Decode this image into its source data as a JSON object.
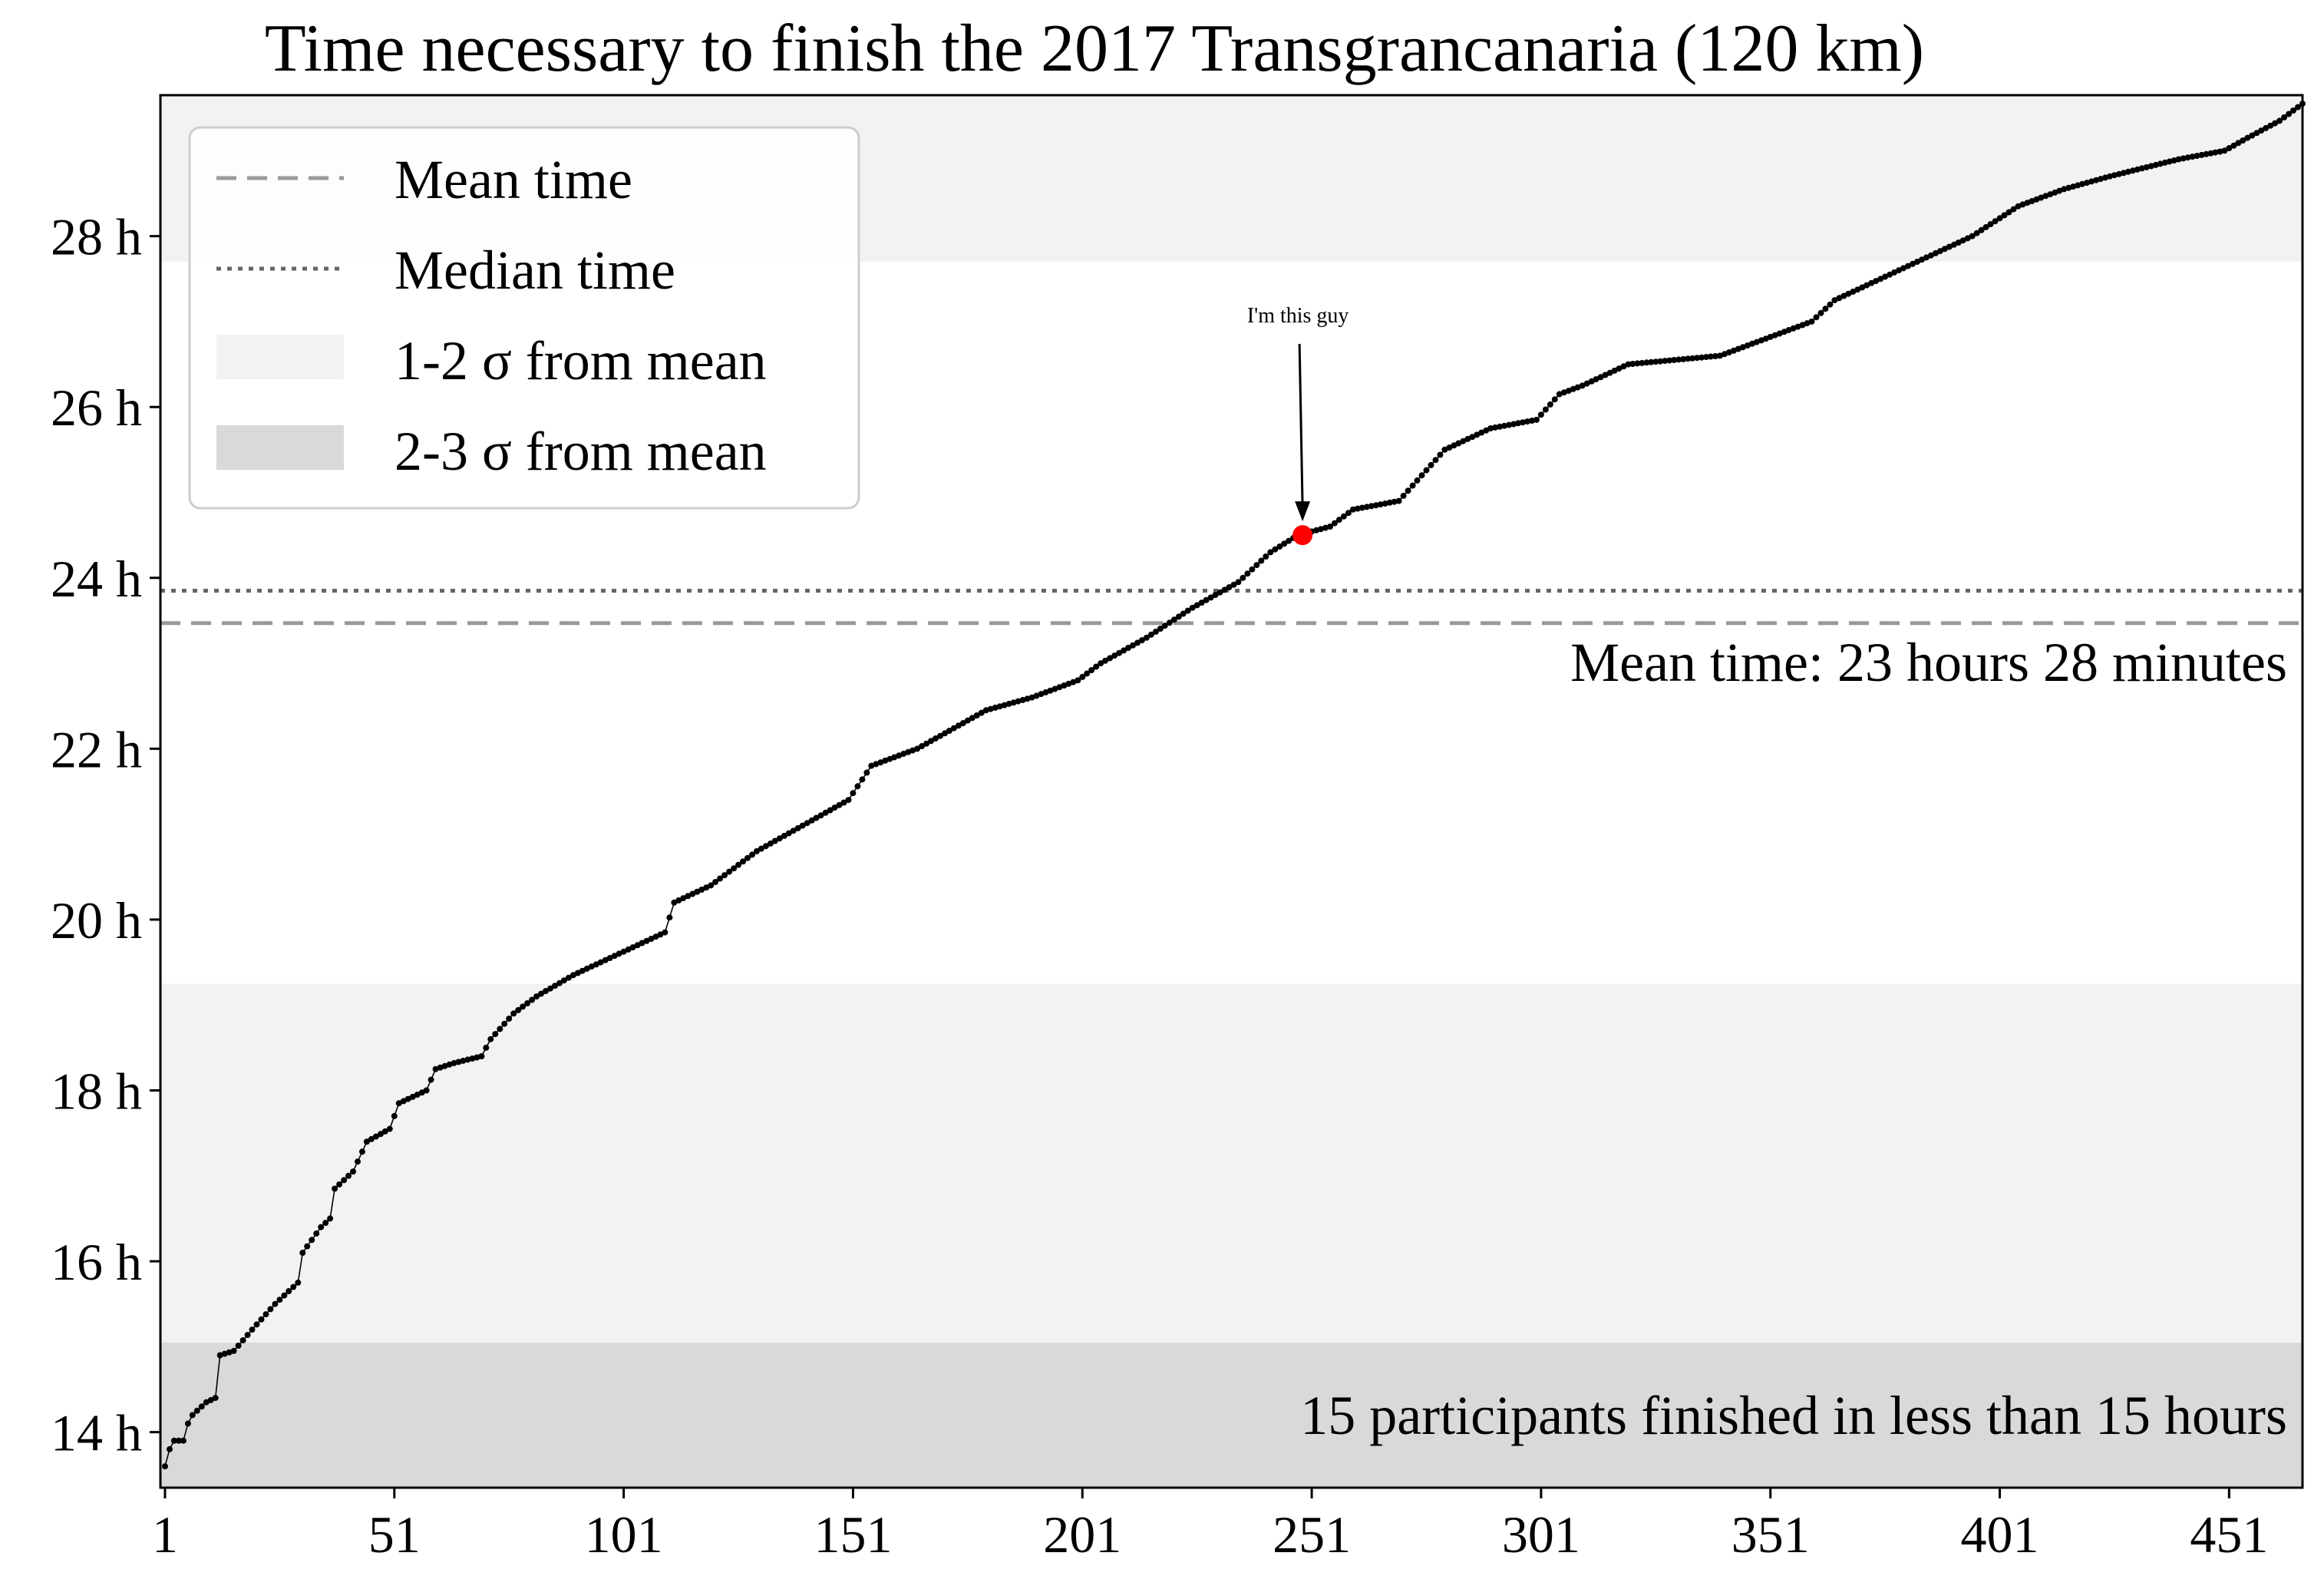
{
  "chart_data": {
    "type": "line",
    "title": "Time necessary to finish the 2017 Transgrancanaria (120 km)",
    "xlabel": "",
    "ylabel": "",
    "xlim": [
      0,
      467
    ],
    "ylim": [
      13.35,
      29.65
    ],
    "x_ticks": [
      1,
      51,
      101,
      151,
      201,
      251,
      301,
      351,
      401,
      451
    ],
    "x_tick_labels": [
      "1",
      "51",
      "101",
      "151",
      "201",
      "251",
      "301",
      "351",
      "401",
      "451"
    ],
    "y_ticks": [
      14,
      16,
      18,
      20,
      22,
      24,
      26,
      28
    ],
    "y_tick_labels": [
      "14 h",
      "16 h",
      "18 h",
      "20 h",
      "22 h",
      "24 h",
      "26 h",
      "28 h"
    ],
    "grid": false,
    "legend_position": "top-left",
    "legend": [
      {
        "label": "Mean time",
        "style": "dashed"
      },
      {
        "label": "Median time",
        "style": "dotted"
      },
      {
        "label": "1-2 σ from mean",
        "style": "band-light"
      },
      {
        "label": "2-3 σ from mean",
        "style": "band-dark"
      }
    ],
    "mean_hours": 23.47,
    "median_hours": 23.85,
    "bands": [
      {
        "name": "2-3 σ from mean",
        "from": 13.35,
        "to": 15.05,
        "color": "#d9d9d9"
      },
      {
        "name": "1-2 σ from mean",
        "from": 15.05,
        "to": 19.25,
        "color": "#f2f2f2"
      },
      {
        "name": "1-2 σ from mean",
        "from": 27.7,
        "to": 29.65,
        "color": "#f2f2f2"
      }
    ],
    "series": [
      {
        "color": "#000000",
        "marker": "dot",
        "x_range": [
          1,
          467
        ],
        "points": [
          [
            1,
            13.6
          ],
          [
            2,
            13.8
          ],
          [
            3,
            13.9
          ],
          [
            5,
            13.9
          ],
          [
            6,
            14.1
          ],
          [
            7,
            14.2
          ],
          [
            10,
            14.35
          ],
          [
            12,
            14.4
          ],
          [
            13,
            14.9
          ],
          [
            16,
            14.95
          ],
          [
            20,
            15.2
          ],
          [
            25,
            15.5
          ],
          [
            30,
            15.75
          ],
          [
            31,
            16.1
          ],
          [
            35,
            16.4
          ],
          [
            37,
            16.5
          ],
          [
            38,
            16.85
          ],
          [
            42,
            17.05
          ],
          [
            45,
            17.4
          ],
          [
            50,
            17.55
          ],
          [
            52,
            17.85
          ],
          [
            58,
            18.0
          ],
          [
            60,
            18.25
          ],
          [
            64,
            18.32
          ],
          [
            70,
            18.4
          ],
          [
            72,
            18.6
          ],
          [
            77,
            18.9
          ],
          [
            82,
            19.1
          ],
          [
            90,
            19.35
          ],
          [
            100,
            19.6
          ],
          [
            110,
            19.85
          ],
          [
            112,
            20.2
          ],
          [
            120,
            20.4
          ],
          [
            130,
            20.8
          ],
          [
            140,
            21.1
          ],
          [
            150,
            21.4
          ],
          [
            155,
            21.8
          ],
          [
            165,
            22.0
          ],
          [
            180,
            22.45
          ],
          [
            190,
            22.6
          ],
          [
            200,
            22.8
          ],
          [
            205,
            23.0
          ],
          [
            215,
            23.3
          ],
          [
            225,
            23.65
          ],
          [
            235,
            23.95
          ],
          [
            242,
            24.3
          ],
          [
            248,
            24.5
          ],
          [
            255,
            24.6
          ],
          [
            260,
            24.8
          ],
          [
            270,
            24.9
          ],
          [
            280,
            25.5
          ],
          [
            290,
            25.75
          ],
          [
            300,
            25.85
          ],
          [
            305,
            26.15
          ],
          [
            310,
            26.25
          ],
          [
            320,
            26.5
          ],
          [
            330,
            26.55
          ],
          [
            340,
            26.6
          ],
          [
            350,
            26.8
          ],
          [
            360,
            27.0
          ],
          [
            365,
            27.25
          ],
          [
            375,
            27.5
          ],
          [
            385,
            27.75
          ],
          [
            395,
            28.0
          ],
          [
            405,
            28.35
          ],
          [
            415,
            28.55
          ],
          [
            425,
            28.7
          ],
          [
            440,
            28.9
          ],
          [
            450,
            29.0
          ],
          [
            455,
            29.15
          ],
          [
            462,
            29.35
          ],
          [
            467,
            29.55
          ]
        ]
      }
    ],
    "highlight": {
      "x": 249,
      "y": 24.5,
      "label": "I'm this guy",
      "color": "#ff0000"
    },
    "annotations": [
      {
        "text": "Mean time: 23 hours 28 minutes"
      },
      {
        "text": "15 participants finished in less than 15 hours"
      }
    ]
  }
}
